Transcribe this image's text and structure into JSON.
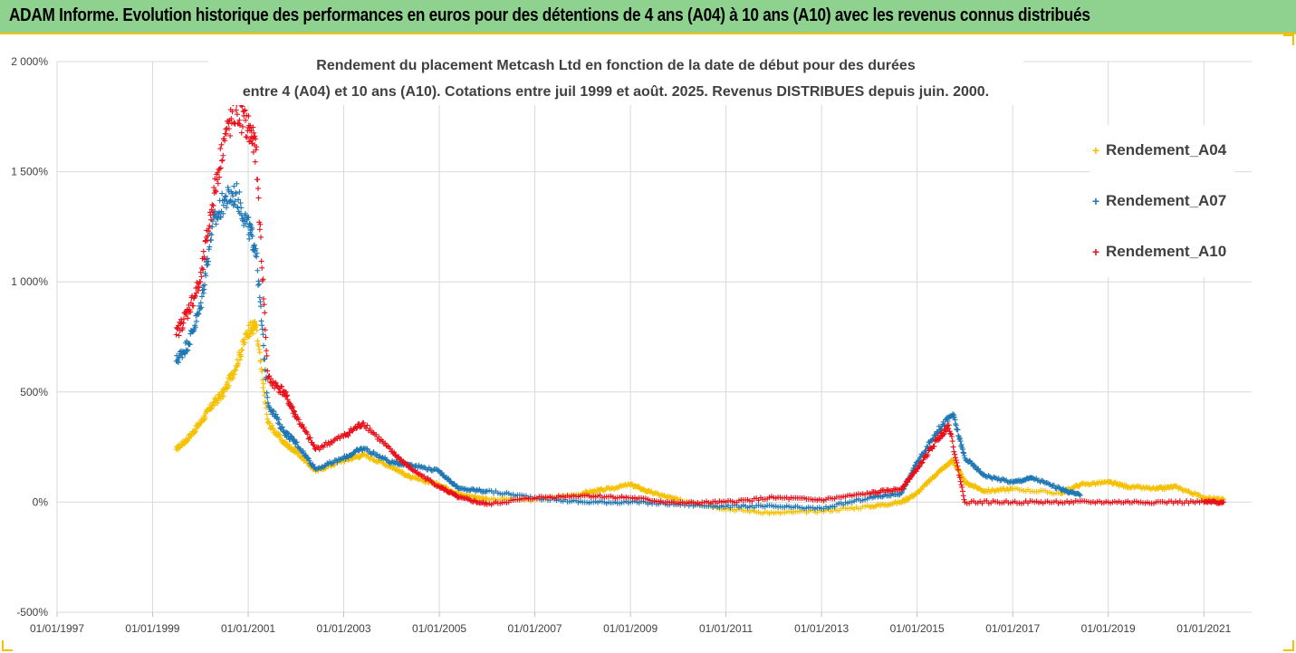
{
  "banner": {
    "title": "ADAM Informe. Evolution historique des performances en euros pour des détentions de 4 ans (A04) à 10 ans (A10) avec les revenus connus distribués"
  },
  "colors": {
    "banner_bg": "#8fd18f",
    "banner_border": "#f2c200",
    "A04": "#f5c000",
    "A07": "#1f77b4",
    "A10": "#e8101a"
  },
  "chart_data": {
    "type": "scatter",
    "title": "Rendement du placement Metcash Ltd en fonction de la date de début pour des durées",
    "subtitle": "entre 4 (A04) et 10 ans (A10).  Cotations entre juil 1999 et août. 2025.  Revenus DISTRIBUES depuis juin. 2000.",
    "xlabel": "",
    "ylabel": "",
    "x_ticks": [
      "01/01/1997",
      "01/01/1999",
      "01/01/2001",
      "01/01/2003",
      "01/01/2005",
      "01/01/2007",
      "01/01/2009",
      "01/01/2011",
      "01/01/2013",
      "01/01/2015",
      "01/01/2017",
      "01/01/2019",
      "01/01/2021"
    ],
    "xlim": [
      "1997-01-01",
      "2022-01-01"
    ],
    "y_ticks": [
      "-500%",
      "0%",
      "500%",
      "1 000%",
      "1 500%",
      "2 000%"
    ],
    "ylim": [
      -500,
      2000
    ],
    "grid": "horizontal",
    "legend_position": "top-right",
    "series": [
      {
        "name": "Rendement_A04",
        "x": [
          "1999-07-01",
          "1999-10-01",
          "2000-01-01",
          "2000-04-01",
          "2000-07-01",
          "2000-10-01",
          "2001-01-01",
          "2001-03-01",
          "2001-06-01",
          "2001-10-01",
          "2002-01-01",
          "2002-06-01",
          "2003-01-01",
          "2003-06-01",
          "2004-01-01",
          "2004-06-01",
          "2005-01-01",
          "2005-06-01",
          "2006-01-01",
          "2007-01-01",
          "2008-01-01",
          "2008-06-01",
          "2009-01-01",
          "2009-06-01",
          "2010-01-01",
          "2011-01-01",
          "2012-01-01",
          "2013-01-01",
          "2014-01-01",
          "2014-09-01",
          "2015-01-01",
          "2015-06-01",
          "2015-10-01",
          "2016-01-01",
          "2016-06-01",
          "2017-01-01",
          "2018-01-01",
          "2018-06-01",
          "2019-01-01",
          "2019-06-01",
          "2020-01-01",
          "2020-06-01",
          "2021-01-01",
          "2021-06-01"
        ],
        "y": [
          240,
          290,
          360,
          440,
          500,
          620,
          780,
          800,
          360,
          270,
          230,
          140,
          190,
          215,
          160,
          110,
          80,
          35,
          15,
          10,
          40,
          55,
          80,
          45,
          10,
          -30,
          -50,
          -40,
          -20,
          0,
          40,
          130,
          190,
          90,
          50,
          60,
          40,
          80,
          90,
          70,
          60,
          70,
          20,
          10
        ]
      },
      {
        "name": "Rendement_A07",
        "x": [
          "1999-07-01",
          "1999-10-01",
          "2000-01-01",
          "2000-04-01",
          "2000-07-01",
          "2000-10-01",
          "2001-01-01",
          "2001-03-01",
          "2001-06-01",
          "2001-10-01",
          "2002-01-01",
          "2002-06-01",
          "2003-01-01",
          "2003-06-01",
          "2004-01-01",
          "2004-06-01",
          "2005-01-01",
          "2005-06-01",
          "2006-01-01",
          "2007-01-01",
          "2008-01-01",
          "2009-01-01",
          "2010-01-01",
          "2011-01-01",
          "2012-01-01",
          "2013-01-01",
          "2014-01-01",
          "2014-09-01",
          "2015-01-01",
          "2015-06-01",
          "2015-10-01",
          "2016-01-01",
          "2016-06-01",
          "2017-01-01",
          "2017-06-01",
          "2018-01-01",
          "2018-06-01"
        ],
        "y": [
          640,
          720,
          880,
          1250,
          1370,
          1400,
          1250,
          1150,
          450,
          320,
          270,
          150,
          200,
          245,
          180,
          170,
          140,
          60,
          50,
          20,
          0,
          0,
          -10,
          -20,
          -20,
          -30,
          20,
          40,
          180,
          320,
          400,
          200,
          120,
          90,
          110,
          60,
          30
        ]
      },
      {
        "name": "Rendement_A10",
        "x": [
          "1999-07-01",
          "1999-10-01",
          "2000-01-01",
          "2000-04-01",
          "2000-07-01",
          "2000-10-01",
          "2001-01-01",
          "2001-03-01",
          "2001-06-01",
          "2001-10-01",
          "2002-01-01",
          "2002-06-01",
          "2003-01-01",
          "2003-06-01",
          "2004-01-01",
          "2004-06-01",
          "2005-01-01",
          "2005-06-01",
          "2006-01-01",
          "2007-01-01",
          "2008-01-01",
          "2009-01-01",
          "2010-01-01",
          "2011-01-01",
          "2012-01-01",
          "2013-01-01",
          "2014-01-01",
          "2014-09-01",
          "2015-01-01",
          "2015-06-01",
          "2015-09-01",
          "2016-01-01",
          "2017-01-01",
          "2018-01-01",
          "2019-01-01",
          "2020-01-01",
          "2021-01-01",
          "2021-06-01"
        ],
        "y": [
          760,
          870,
          1000,
          1350,
          1650,
          1780,
          1700,
          1600,
          560,
          500,
          390,
          240,
          300,
          360,
          230,
          150,
          70,
          20,
          -10,
          20,
          30,
          20,
          -5,
          0,
          20,
          10,
          40,
          60,
          150,
          280,
          350,
          0,
          0,
          0,
          0,
          0,
          0,
          0
        ]
      }
    ]
  }
}
